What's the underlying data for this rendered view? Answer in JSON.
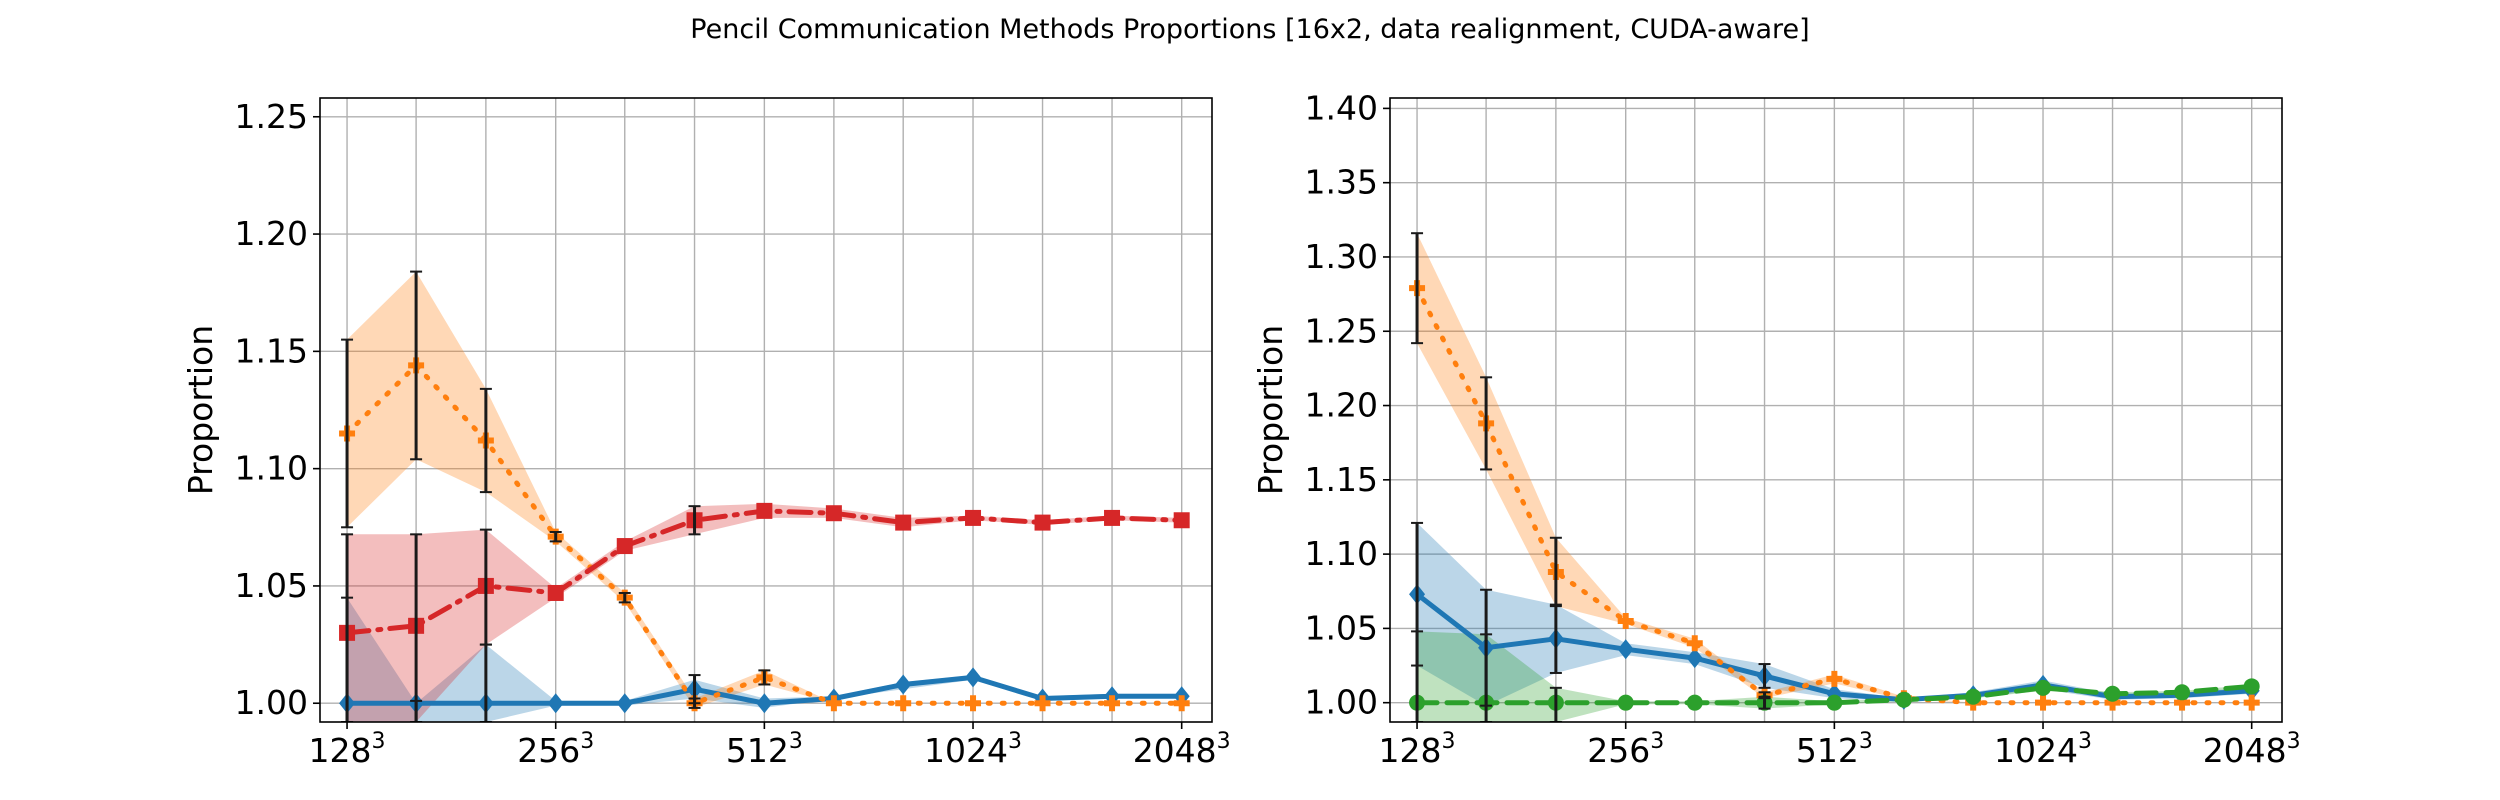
{
  "figure": {
    "title": "Pencil Communication Methods Proportions [16x2, data realignment, CUDA-aware]"
  },
  "chart_data": [
    {
      "type": "line",
      "ylabel": "Proportion",
      "xlabel": "",
      "x": [
        128,
        161,
        203,
        256,
        322,
        406,
        512,
        645,
        812,
        1024,
        1290,
        1625,
        2048
      ],
      "x_scale": "log2",
      "xticks": [
        128,
        256,
        512,
        1024,
        2048
      ],
      "xtick_labels": [
        {
          "base": "128",
          "exp": "3"
        },
        {
          "base": "256",
          "exp": "3"
        },
        {
          "base": "512",
          "exp": "3"
        },
        {
          "base": "1024",
          "exp": "3"
        },
        {
          "base": "2048",
          "exp": "3"
        }
      ],
      "ylim": [
        0.992,
        1.258
      ],
      "yticks": [
        "1.00",
        "1.05",
        "1.10",
        "1.15",
        "1.20",
        "1.25"
      ],
      "grid": true,
      "series": [
        {
          "color": "#1f77b4",
          "linestyle": "solid",
          "marker": "diamond",
          "band_color": "#1f77b4",
          "values": [
            1.0,
            1.0,
            1.0,
            1.0,
            1.0,
            1.006,
            1.0,
            1.002,
            1.008,
            1.011,
            1.002,
            1.003,
            1.003
          ],
          "band_lower": [
            0.992,
            0.992,
            0.992,
            0.999,
            0.999,
            1.002,
            0.998,
            1.002,
            1.006,
            1.01,
            1.001,
            1.002,
            1.003
          ],
          "band_upper": [
            1.045,
            1.0,
            1.025,
            1.001,
            1.001,
            1.01,
            1.002,
            1.003,
            1.009,
            1.012,
            1.003,
            1.004,
            1.004
          ],
          "error_low": [
            0.992,
            0.992,
            0.992,
            null,
            null,
            1.0,
            null,
            null,
            null,
            null,
            null,
            null,
            null
          ],
          "error_high": [
            1.045,
            1.001,
            1.025,
            null,
            null,
            1.012,
            null,
            null,
            null,
            null,
            null,
            null,
            null
          ]
        },
        {
          "color": "#ff7f0e",
          "linestyle": "dotted",
          "marker": "plus-filled",
          "band_color": "#ff7f0e",
          "values": [
            1.115,
            1.144,
            1.112,
            1.071,
            1.045,
            1.0,
            1.011,
            1.0,
            1.0,
            1.0,
            1.0,
            1.0,
            1.0
          ],
          "band_lower": [
            1.075,
            1.104,
            1.09,
            1.069,
            1.043,
            0.998,
            1.008,
            1.0,
            1.0,
            1.0,
            1.0,
            1.0,
            1.0
          ],
          "band_upper": [
            1.155,
            1.184,
            1.134,
            1.073,
            1.047,
            1.002,
            1.014,
            1.0,
            1.0,
            1.0,
            1.0,
            1.0,
            1.0
          ],
          "error_low": [
            1.075,
            1.104,
            1.09,
            1.069,
            1.043,
            0.998,
            1.008,
            null,
            null,
            null,
            null,
            null,
            null
          ],
          "error_high": [
            1.155,
            1.184,
            1.134,
            1.073,
            1.047,
            1.002,
            1.014,
            null,
            null,
            null,
            null,
            null,
            null
          ]
        },
        {
          "color": "#d62728",
          "linestyle": "dashdot",
          "marker": "square",
          "band_color": "#d62728",
          "values": [
            1.03,
            1.033,
            1.05,
            1.047,
            1.067,
            1.078,
            1.082,
            1.081,
            1.077,
            1.079,
            1.077,
            1.079,
            1.078
          ],
          "band_lower": [
            0.992,
            0.992,
            1.025,
            1.045,
            1.065,
            1.072,
            1.079,
            1.079,
            1.075,
            1.078,
            1.076,
            1.078,
            1.077
          ],
          "band_upper": [
            1.072,
            1.072,
            1.074,
            1.049,
            1.069,
            1.084,
            1.085,
            1.083,
            1.079,
            1.08,
            1.078,
            1.08,
            1.079
          ],
          "error_low": [
            0.992,
            0.992,
            1.025,
            null,
            null,
            1.072,
            null,
            null,
            null,
            null,
            null,
            null,
            null
          ],
          "error_high": [
            1.072,
            1.072,
            1.074,
            null,
            null,
            1.084,
            null,
            null,
            null,
            null,
            null,
            null,
            null
          ]
        }
      ]
    },
    {
      "type": "line",
      "ylabel": "Proportion",
      "xlabel": "",
      "x": [
        128,
        161,
        203,
        256,
        322,
        406,
        512,
        645,
        812,
        1024,
        1290,
        1625,
        2048
      ],
      "x_scale": "log2",
      "xticks": [
        128,
        256,
        512,
        1024,
        2048
      ],
      "xtick_labels": [
        {
          "base": "128",
          "exp": "3"
        },
        {
          "base": "256",
          "exp": "3"
        },
        {
          "base": "512",
          "exp": "3"
        },
        {
          "base": "1024",
          "exp": "3"
        },
        {
          "base": "2048",
          "exp": "3"
        }
      ],
      "ylim": [
        0.987,
        1.407
      ],
      "yticks": [
        "1.00",
        "1.05",
        "1.10",
        "1.15",
        "1.20",
        "1.25",
        "1.30",
        "1.35",
        "1.40"
      ],
      "grid": true,
      "series": [
        {
          "color": "#1f77b4",
          "linestyle": "solid",
          "marker": "diamond",
          "band_color": "#1f77b4",
          "values": [
            1.073,
            1.037,
            1.043,
            1.036,
            1.03,
            1.018,
            1.006,
            1.002,
            1.005,
            1.012,
            1.004,
            1.005,
            1.008
          ],
          "band_lower": [
            1.025,
            0.998,
            1.02,
            1.032,
            1.026,
            1.01,
            1.003,
            1.001,
            1.003,
            1.009,
            1.002,
            1.003,
            1.006
          ],
          "band_upper": [
            1.121,
            1.076,
            1.066,
            1.04,
            1.034,
            1.026,
            1.009,
            1.003,
            1.007,
            1.015,
            1.006,
            1.007,
            1.01
          ],
          "error_low": [
            1.025,
            0.998,
            1.02,
            null,
            null,
            1.01,
            null,
            null,
            null,
            null,
            null,
            null,
            null
          ],
          "error_high": [
            1.121,
            1.076,
            1.066,
            null,
            null,
            1.026,
            null,
            null,
            null,
            null,
            null,
            null,
            null
          ]
        },
        {
          "color": "#ff7f0e",
          "linestyle": "dotted",
          "marker": "plus-filled",
          "band_color": "#ff7f0e",
          "values": [
            1.279,
            1.188,
            1.088,
            1.055,
            1.04,
            1.005,
            1.016,
            1.003,
            1.0,
            1.0,
            1.0,
            1.0,
            1.0
          ],
          "band_lower": [
            1.242,
            1.157,
            1.065,
            1.053,
            1.037,
            1.003,
            1.013,
            1.002,
            1.0,
            1.0,
            1.0,
            1.0,
            1.0
          ],
          "band_upper": [
            1.316,
            1.219,
            1.111,
            1.057,
            1.043,
            1.007,
            1.019,
            1.004,
            1.0,
            1.0,
            1.0,
            1.0,
            1.0
          ],
          "error_low": [
            1.242,
            1.157,
            1.065,
            null,
            null,
            1.003,
            null,
            null,
            null,
            null,
            null,
            null,
            null
          ],
          "error_high": [
            1.316,
            1.219,
            1.111,
            null,
            null,
            1.007,
            null,
            null,
            null,
            null,
            null,
            null,
            null
          ]
        },
        {
          "color": "#2ca02c",
          "linestyle": "dashed",
          "marker": "circle",
          "band_color": "#2ca02c",
          "values": [
            1.0,
            1.0,
            1.0,
            1.0,
            1.0,
            1.0,
            1.0,
            1.002,
            1.004,
            1.01,
            1.006,
            1.007,
            1.011
          ],
          "band_lower": [
            0.987,
            0.987,
            0.987,
            0.999,
            0.999,
            0.996,
            0.999,
            1.001,
            1.003,
            1.008,
            1.005,
            1.006,
            1.01
          ],
          "band_upper": [
            1.048,
            1.046,
            1.01,
            1.001,
            1.001,
            1.004,
            1.001,
            1.003,
            1.005,
            1.012,
            1.007,
            1.008,
            1.012
          ],
          "error_low": [
            0.987,
            0.987,
            0.987,
            null,
            null,
            0.996,
            null,
            null,
            null,
            null,
            null,
            null,
            null
          ],
          "error_high": [
            1.048,
            1.046,
            1.01,
            null,
            null,
            1.004,
            null,
            null,
            null,
            null,
            null,
            null,
            null
          ]
        }
      ]
    }
  ]
}
